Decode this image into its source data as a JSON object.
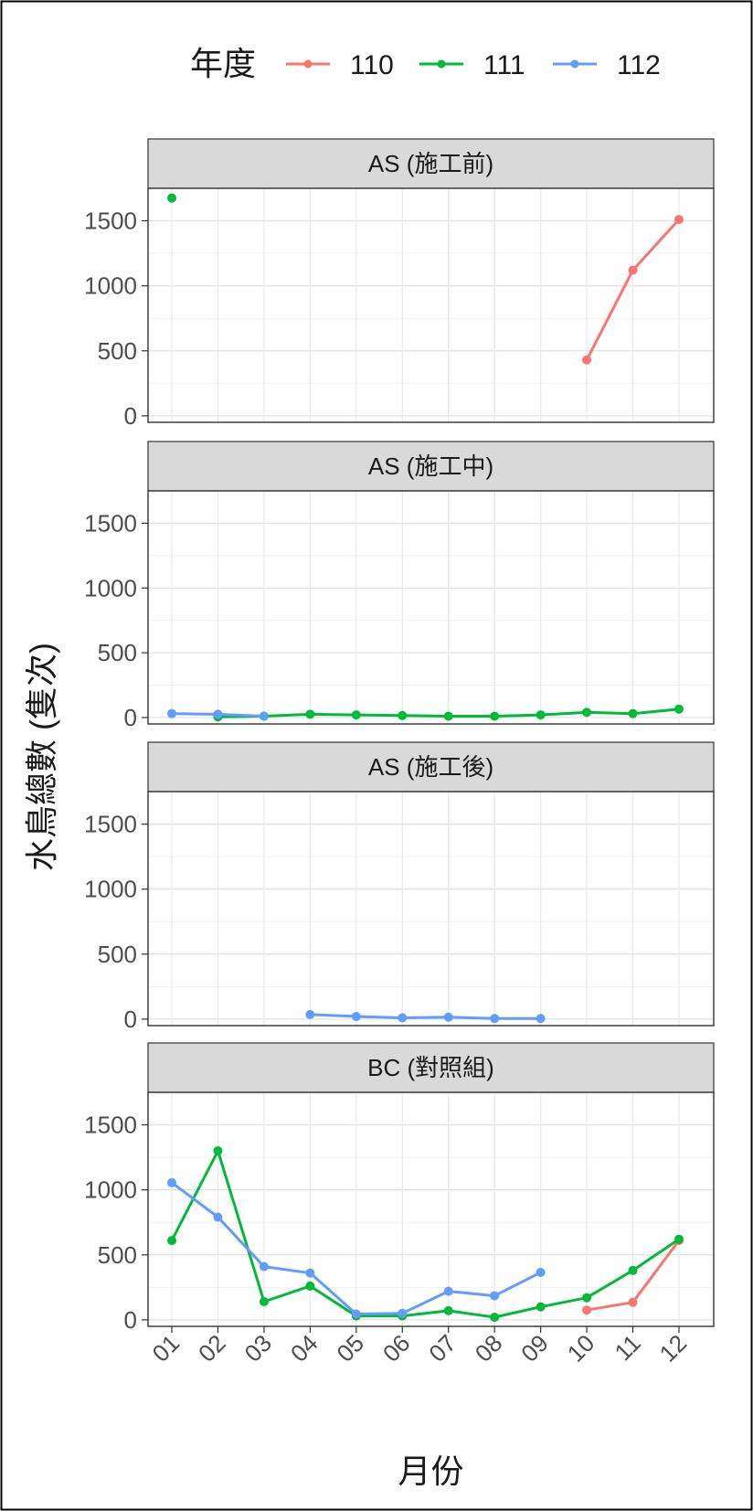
{
  "chart_data": {
    "type": "line",
    "xlabel": "月份",
    "ylabel": "水鳥總數 (隻次)",
    "x_categories": [
      "01",
      "02",
      "03",
      "04",
      "05",
      "06",
      "07",
      "08",
      "09",
      "10",
      "11",
      "12"
    ],
    "y_ticks": [
      0,
      500,
      1000,
      1500
    ],
    "ylim": [
      -50,
      1750
    ],
    "grid": true,
    "legend": {
      "title": "年度",
      "position": "top",
      "entries": [
        {
          "name": "110",
          "color": "#F8766D"
        },
        {
          "name": "111",
          "color": "#00BA38"
        },
        {
          "name": "112",
          "color": "#619CFF"
        }
      ]
    },
    "panels": [
      {
        "title": "AS (施工前)",
        "series": [
          {
            "name": "110",
            "color": "#F8766D",
            "points": [
              [
                10,
                430
              ],
              [
                11,
                1120
              ],
              [
                12,
                1510
              ]
            ]
          },
          {
            "name": "111",
            "color": "#00BA38",
            "points": [
              [
                1,
                1675
              ]
            ]
          }
        ]
      },
      {
        "title": "AS (施工中)",
        "series": [
          {
            "name": "111",
            "color": "#00BA38",
            "points": [
              [
                2,
                5
              ],
              [
                3,
                10
              ],
              [
                4,
                25
              ],
              [
                5,
                20
              ],
              [
                6,
                15
              ],
              [
                7,
                10
              ],
              [
                8,
                10
              ],
              [
                9,
                20
              ],
              [
                10,
                40
              ],
              [
                11,
                30
              ],
              [
                12,
                65
              ]
            ]
          },
          {
            "name": "112",
            "color": "#619CFF",
            "points": [
              [
                1,
                30
              ],
              [
                2,
                25
              ],
              [
                3,
                10
              ]
            ]
          }
        ]
      },
      {
        "title": "AS (施工後)",
        "series": [
          {
            "name": "112",
            "color": "#619CFF",
            "points": [
              [
                4,
                35
              ],
              [
                5,
                20
              ],
              [
                6,
                10
              ],
              [
                7,
                15
              ],
              [
                8,
                5
              ],
              [
                9,
                5
              ]
            ]
          }
        ]
      },
      {
        "title": "BC (對照組)",
        "series": [
          {
            "name": "110",
            "color": "#F8766D",
            "points": [
              [
                10,
                75
              ],
              [
                11,
                135
              ],
              [
                12,
                610
              ]
            ]
          },
          {
            "name": "111",
            "color": "#00BA38",
            "points": [
              [
                1,
                610
              ],
              [
                2,
                1300
              ],
              [
                3,
                140
              ],
              [
                4,
                260
              ],
              [
                5,
                30
              ],
              [
                6,
                30
              ],
              [
                7,
                70
              ],
              [
                8,
                20
              ],
              [
                9,
                100
              ],
              [
                10,
                170
              ],
              [
                11,
                380
              ],
              [
                12,
                620
              ]
            ]
          },
          {
            "name": "112",
            "color": "#619CFF",
            "points": [
              [
                1,
                1055
              ],
              [
                2,
                790
              ],
              [
                3,
                410
              ],
              [
                4,
                360
              ],
              [
                5,
                45
              ],
              [
                6,
                50
              ],
              [
                7,
                220
              ],
              [
                8,
                185
              ],
              [
                9,
                365
              ]
            ]
          }
        ]
      }
    ]
  }
}
